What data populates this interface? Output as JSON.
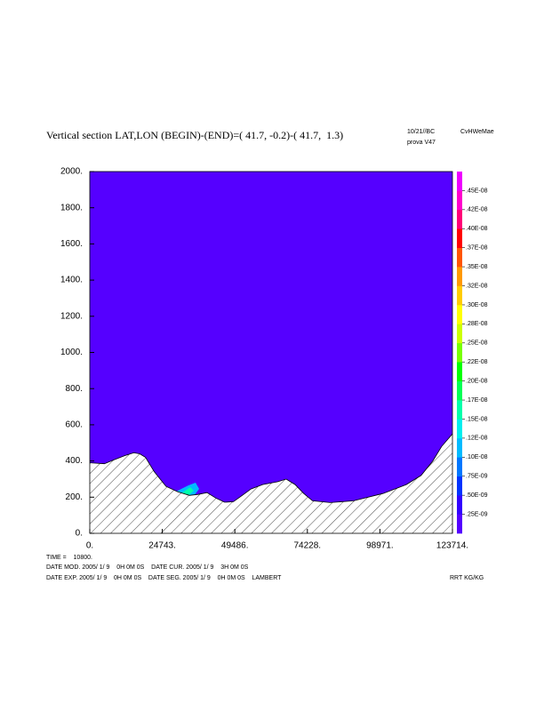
{
  "chart_data": {
    "type": "section",
    "title": "Vertical section LAT,LON (BEGIN)-(END)=( 41.7, -0.2)-( 41.7,  1.3)",
    "header": [
      "10/21//BC",
      "CvHWeMae",
      "prova V47"
    ],
    "footer": [
      "TIME =    10800.",
      "DATE MOD. 2005/ 1/ 9    0H 0M 0S    DATE CUR. 2005/ 1/ 9    3H 0M 0S",
      "DATE EXP. 2005/ 1/ 9    0H 0M 0S    DATE SEG. 2005/ 1/ 9    0H 0M 0S    LAMBERT"
    ],
    "units": "RRT KG/KG",
    "field_color": "#5500ff",
    "xlim": [
      0,
      123714
    ],
    "xticks": [
      {
        "value": 0,
        "label": "0."
      },
      {
        "value": 24743,
        "label": "24743."
      },
      {
        "value": 49486,
        "label": "49486."
      },
      {
        "value": 74228,
        "label": "74228."
      },
      {
        "value": 98971,
        "label": "98971."
      },
      {
        "value": 123714,
        "label": "123714."
      }
    ],
    "ylim": [
      0,
      2000
    ],
    "yticks": [
      {
        "value": 0,
        "label": "0."
      },
      {
        "value": 200,
        "label": "200."
      },
      {
        "value": 400,
        "label": "400."
      },
      {
        "value": 600,
        "label": "600."
      },
      {
        "value": 800,
        "label": "800."
      },
      {
        "value": 1000,
        "label": "1000."
      },
      {
        "value": 1200,
        "label": "1200."
      },
      {
        "value": 1400,
        "label": "1400."
      },
      {
        "value": 1600,
        "label": "1600."
      },
      {
        "value": 1800,
        "label": "1800."
      },
      {
        "value": 2000,
        "label": "2000."
      }
    ],
    "terrain": {
      "x": [
        0,
        5000,
        8000,
        12000,
        15000,
        17000,
        19000,
        22000,
        26000,
        30000,
        34000,
        37000,
        40000,
        43000,
        46000,
        49000,
        52000,
        55000,
        59000,
        64000,
        67000,
        70000,
        73000,
        76000,
        82000,
        90000,
        100000,
        108000,
        113000,
        117000,
        120000,
        123714
      ],
      "values": [
        390,
        385,
        405,
        430,
        445,
        440,
        420,
        340,
        260,
        230,
        210,
        215,
        225,
        195,
        172,
        175,
        210,
        245,
        270,
        285,
        300,
        270,
        220,
        180,
        170,
        180,
        220,
        270,
        320,
        400,
        480,
        550
      ]
    },
    "colorbar": {
      "labels": [
        ".25E-09",
        ".50E-09",
        ".75E-09",
        ".10E-08",
        ".12E-08",
        ".15E-08",
        ".17E-08",
        ".20E-08",
        ".22E-08",
        ".25E-08",
        ".28E-08",
        ".30E-08",
        ".32E-08",
        ".35E-08",
        ".37E-08",
        ".40E-08",
        ".42E-08",
        ".45E-08"
      ],
      "colors": [
        "#5500ff",
        "#3300ff",
        "#0033ff",
        "#0077ff",
        "#00bbff",
        "#00eeee",
        "#00ffaa",
        "#00ff55",
        "#00ff00",
        "#77ff00",
        "#ccff00",
        "#ffff00",
        "#ffcc00",
        "#ff9900",
        "#ff5500",
        "#ff0000",
        "#ff0077",
        "#ff00cc",
        "#ee00ff"
      ]
    }
  }
}
